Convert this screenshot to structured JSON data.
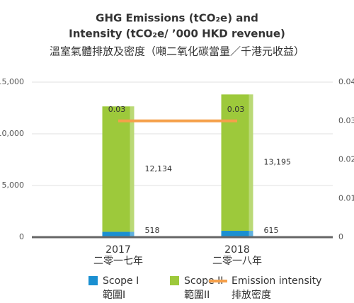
{
  "chart_data": {
    "type": "stacked_bar_line",
    "title": [
      "GHG Emissions (tCO₂e) and",
      "Intensity (tCO₂e/ ’000 HKD revenue)"
    ],
    "subtitle": "溫室氣體排放及密度（噸二氧化碳當量／千港元收益）",
    "categories": [
      "2017",
      "2018"
    ],
    "categories_zh": [
      "二零一七年",
      "二零一八年"
    ],
    "series": [
      {
        "name": "Scope I",
        "name_zh": "範圍I",
        "color": "#1a8fd1",
        "values": [
          518,
          615
        ]
      },
      {
        "name": "Scope II",
        "name_zh": "範圍II",
        "color": "#9dc93b",
        "values": [
          12134,
          13195
        ],
        "value_labels": [
          "12,134",
          "13,195"
        ]
      },
      {
        "name": "Emission intensity",
        "name_zh": "排放密度",
        "color": "#f5a04a",
        "axis": "y2",
        "values": [
          0.03,
          0.03
        ]
      }
    ],
    "ylim": [
      0,
      15000
    ],
    "yticks": [
      {
        "value": 0,
        "label": "0"
      },
      {
        "value": 5000,
        "label": "5,000"
      },
      {
        "value": 10000,
        "label": "10,000"
      },
      {
        "value": 15000,
        "label": "15,000"
      }
    ],
    "y2lim": [
      0,
      0.04
    ],
    "y2ticks": [
      0,
      0.01,
      0.02,
      0.03,
      0.04
    ],
    "grid": true
  }
}
